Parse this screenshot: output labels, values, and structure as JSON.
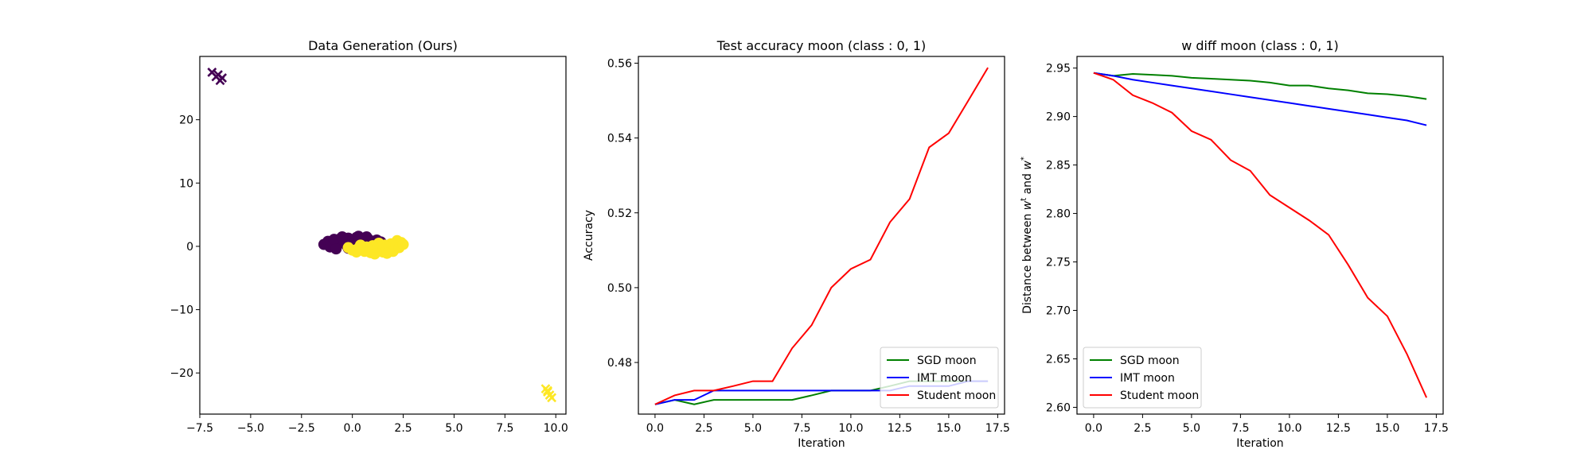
{
  "chart_data": [
    {
      "type": "scatter",
      "title": "Data Generation (Ours)",
      "xlabel": "",
      "ylabel": "",
      "xlim": [
        -7.5,
        10.5
      ],
      "ylim": [
        -26.5,
        30
      ],
      "xticks": [
        -7.5,
        -5.0,
        -2.5,
        0.0,
        2.5,
        5.0,
        7.5,
        10.0
      ],
      "xtick_labels": [
        "−7.5",
        "−5.0",
        "−2.5",
        "0.0",
        "2.5",
        "5.0",
        "7.5",
        "10.0"
      ],
      "yticks": [
        -20,
        -10,
        0,
        10,
        20
      ],
      "ytick_labels": [
        "−20",
        "−10",
        "0",
        "10",
        "20"
      ],
      "grid": false,
      "series": [
        {
          "marker": "dot",
          "color": "#440154",
          "points": [
            [
              -1.4,
              0.3
            ],
            [
              -1.2,
              0.8
            ],
            [
              -1.0,
              0.1
            ],
            [
              -0.8,
              0.9
            ],
            [
              -0.6,
              1.2
            ],
            [
              -0.4,
              0.6
            ],
            [
              -0.2,
              1.3
            ],
            [
              0.0,
              1.0
            ],
            [
              0.2,
              1.4
            ],
            [
              0.4,
              0.7
            ],
            [
              0.6,
              1.3
            ],
            [
              0.8,
              1.1
            ],
            [
              1.0,
              0.8
            ],
            [
              1.2,
              1.0
            ],
            [
              1.4,
              0.7
            ],
            [
              -1.1,
              -0.1
            ],
            [
              -0.7,
              0.4
            ],
            [
              -0.3,
              0.2
            ],
            [
              0.1,
              0.5
            ],
            [
              0.5,
              0.9
            ],
            [
              0.9,
              0.4
            ],
            [
              1.3,
              0.3
            ],
            [
              -0.9,
              1.1
            ],
            [
              -0.5,
              1.5
            ],
            [
              0.3,
              1.6
            ],
            [
              0.7,
              1.5
            ],
            [
              -0.2,
              -0.3
            ],
            [
              -0.8,
              -0.4
            ]
          ]
        },
        {
          "marker": "dot",
          "color": "#fde725",
          "points": [
            [
              -0.2,
              -0.2
            ],
            [
              0.0,
              -0.6
            ],
            [
              0.3,
              -0.3
            ],
            [
              0.6,
              -0.8
            ],
            [
              0.9,
              -1.0
            ],
            [
              1.2,
              -0.7
            ],
            [
              1.5,
              -0.9
            ],
            [
              1.8,
              -0.5
            ],
            [
              2.1,
              -0.4
            ],
            [
              2.3,
              0.1
            ],
            [
              2.4,
              0.6
            ],
            [
              2.2,
              0.9
            ],
            [
              1.9,
              0.4
            ],
            [
              1.6,
              0.2
            ],
            [
              1.3,
              0.5
            ],
            [
              1.0,
              0.1
            ],
            [
              0.7,
              -0.1
            ],
            [
              0.4,
              0.2
            ],
            [
              2.0,
              -0.8
            ],
            [
              2.3,
              -0.2
            ],
            [
              0.2,
              -0.9
            ],
            [
              1.1,
              -1.2
            ],
            [
              1.7,
              -1.1
            ],
            [
              2.5,
              0.3
            ]
          ]
        },
        {
          "marker": "x",
          "color": "#440154",
          "points": [
            [
              -6.9,
              27.5
            ],
            [
              -6.7,
              26.8
            ],
            [
              -6.5,
              26.2
            ],
            [
              -6.4,
              26.6
            ],
            [
              -6.6,
              27.1
            ]
          ]
        },
        {
          "marker": "x",
          "color": "#fde725",
          "points": [
            [
              9.5,
              -22.5
            ],
            [
              9.6,
              -23.0
            ],
            [
              9.7,
              -23.5
            ],
            [
              9.8,
              -23.9
            ],
            [
              9.6,
              -22.8
            ]
          ]
        }
      ]
    },
    {
      "type": "line",
      "title": "Test accuracy moon (class : 0, 1)",
      "xlabel": "Iteration",
      "ylabel": "Accuracy",
      "xlim": [
        -0.85,
        17.85
      ],
      "ylim": [
        0.4662,
        0.5618
      ],
      "xticks": [
        0.0,
        2.5,
        5.0,
        7.5,
        10.0,
        12.5,
        15.0,
        17.5
      ],
      "xtick_labels": [
        "0.0",
        "2.5",
        "5.0",
        "7.5",
        "10.0",
        "12.5",
        "15.0",
        "17.5"
      ],
      "yticks": [
        0.48,
        0.5,
        0.52,
        0.54,
        0.56
      ],
      "ytick_labels": [
        "0.48",
        "0.50",
        "0.52",
        "0.54",
        "0.56"
      ],
      "grid": false,
      "legend_position": "bottom-right",
      "x": [
        0,
        1,
        2,
        3,
        4,
        5,
        6,
        7,
        8,
        9,
        10,
        11,
        12,
        13,
        14,
        15,
        16,
        17
      ],
      "series": [
        {
          "name": "SGD moon",
          "color": "#008000",
          "values": [
            0.4688,
            0.47,
            0.4688,
            0.47,
            0.47,
            0.47,
            0.47,
            0.47,
            0.4712,
            0.4725,
            0.4725,
            0.4725,
            0.4737,
            0.475,
            0.475,
            0.475,
            0.475,
            0.475
          ]
        },
        {
          "name": "IMT moon",
          "color": "#0000ff",
          "values": [
            0.4688,
            0.47,
            0.47,
            0.4725,
            0.4725,
            0.4725,
            0.4725,
            0.4725,
            0.4725,
            0.4725,
            0.4725,
            0.4725,
            0.4725,
            0.4737,
            0.4737,
            0.4737,
            0.475,
            0.475
          ]
        },
        {
          "name": "Student moon",
          "color": "#ff0000",
          "values": [
            0.4688,
            0.4712,
            0.4725,
            0.4725,
            0.4737,
            0.475,
            0.475,
            0.4838,
            0.49,
            0.5,
            0.505,
            0.5075,
            0.5175,
            0.5237,
            0.5375,
            0.5413,
            0.55,
            0.5588
          ]
        }
      ]
    },
    {
      "type": "line",
      "title": "w diff moon (class : 0, 1)",
      "xlabel": "Iteration",
      "ylabel": "Distance between w^t and w^*",
      "ylabel_parts": {
        "pre": "Distance between ",
        "w1": "w",
        "sup1": "t",
        "mid": " and ",
        "w2": "w",
        "sup2": "*"
      },
      "xlim": [
        -0.85,
        17.85
      ],
      "ylim": [
        2.593,
        2.962
      ],
      "xticks": [
        0.0,
        2.5,
        5.0,
        7.5,
        10.0,
        12.5,
        15.0,
        17.5
      ],
      "xtick_labels": [
        "0.0",
        "2.5",
        "5.0",
        "7.5",
        "10.0",
        "12.5",
        "15.0",
        "17.5"
      ],
      "yticks": [
        2.6,
        2.65,
        2.7,
        2.75,
        2.8,
        2.85,
        2.9,
        2.95
      ],
      "ytick_labels": [
        "2.60",
        "2.65",
        "2.70",
        "2.75",
        "2.80",
        "2.85",
        "2.90",
        "2.95"
      ],
      "grid": false,
      "legend_position": "bottom-left",
      "x": [
        0,
        1,
        2,
        3,
        4,
        5,
        6,
        7,
        8,
        9,
        10,
        11,
        12,
        13,
        14,
        15,
        16,
        17
      ],
      "series": [
        {
          "name": "SGD moon",
          "color": "#008000",
          "values": [
            2.945,
            2.942,
            2.944,
            2.943,
            2.942,
            2.94,
            2.939,
            2.938,
            2.937,
            2.935,
            2.932,
            2.932,
            2.929,
            2.927,
            2.924,
            2.923,
            2.921,
            2.918
          ]
        },
        {
          "name": "IMT moon",
          "color": "#0000ff",
          "values": [
            2.945,
            2.942,
            2.938,
            2.935,
            2.932,
            2.929,
            2.926,
            2.923,
            2.92,
            2.917,
            2.914,
            2.911,
            2.908,
            2.905,
            2.902,
            2.899,
            2.896,
            2.891
          ]
        },
        {
          "name": "Student moon",
          "color": "#ff0000",
          "values": [
            2.945,
            2.938,
            2.922,
            2.914,
            2.904,
            2.885,
            2.876,
            2.855,
            2.844,
            2.819,
            2.806,
            2.793,
            2.778,
            2.747,
            2.713,
            2.694,
            2.655,
            2.61
          ]
        }
      ]
    }
  ]
}
